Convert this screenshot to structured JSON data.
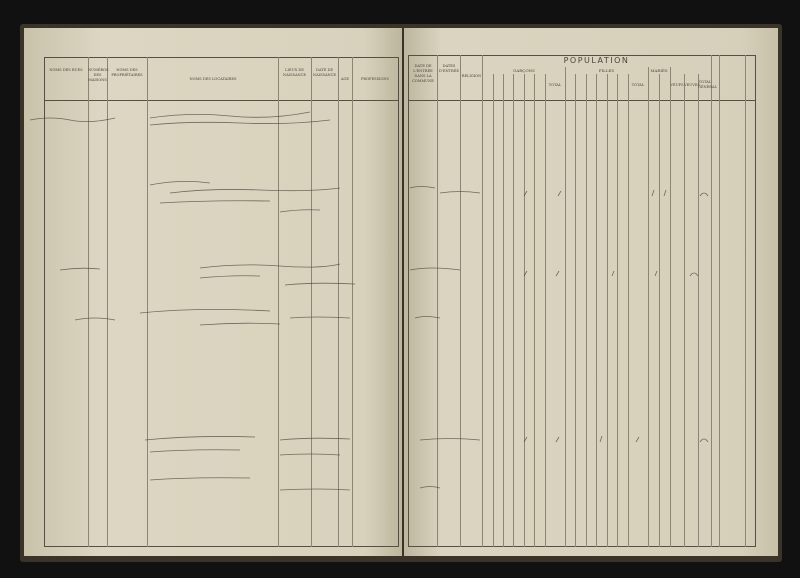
{
  "left_page": {
    "headers": [
      "Noms des rues",
      "Numéros des maisons",
      "Noms des propriétaires",
      "Noms des locataires",
      "Lieux de naissance",
      "Date de naissance",
      "Age",
      "Professions"
    ]
  },
  "right_page": {
    "headers": [
      "Date de l'entrée dans la commune",
      "Dates d'entrée",
      "Religion"
    ],
    "population": "POPULATION",
    "boys": "Garçons",
    "girls": "Filles",
    "married": "Mariés",
    "total": "Total",
    "widowers": "Veufs",
    "widows": "Veuves",
    "grand_total": "Total général"
  },
  "colors": {
    "paper": "#d9d3bf",
    "ink": "#3c3a36",
    "binding": "#3a3328"
  }
}
